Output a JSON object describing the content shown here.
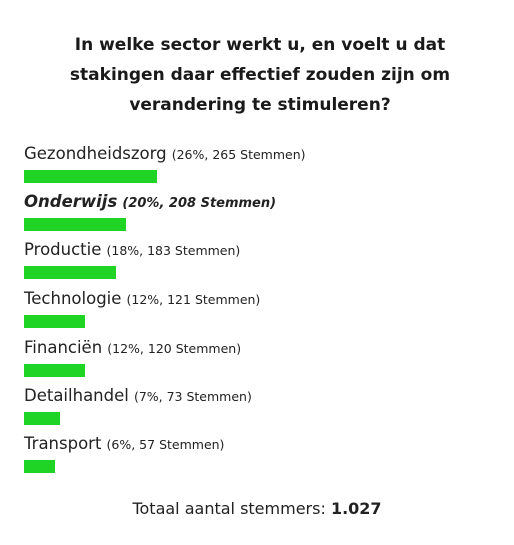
{
  "poll": {
    "question": "In welke sector werkt u, en voelt u dat stakingen daar effectief zouden zijn om verandering te stimuleren?",
    "bar_color": "#1fd424",
    "options": [
      {
        "label": "Gezondheidszorg",
        "stats": "(26%, 265 Stemmen)",
        "percent": 26,
        "votes": 265,
        "selected": false
      },
      {
        "label": "Onderwijs",
        "stats": "(20%, 208 Stemmen)",
        "percent": 20,
        "votes": 208,
        "selected": true
      },
      {
        "label": "Productie",
        "stats": "(18%, 183 Stemmen)",
        "percent": 18,
        "votes": 183,
        "selected": false
      },
      {
        "label": "Technologie",
        "stats": "(12%, 121 Stemmen)",
        "percent": 12,
        "votes": 121,
        "selected": false
      },
      {
        "label": "Financiën",
        "stats": "(12%, 120 Stemmen)",
        "percent": 12,
        "votes": 120,
        "selected": false
      },
      {
        "label": "Detailhandel",
        "stats": "(7%, 73 Stemmen)",
        "percent": 7,
        "votes": 73,
        "selected": false
      },
      {
        "label": "Transport",
        "stats": "(6%, 57 Stemmen)",
        "percent": 6,
        "votes": 57,
        "selected": false
      }
    ],
    "total_label": "Totaal aantal stemmers:",
    "total_value": "1.027"
  }
}
